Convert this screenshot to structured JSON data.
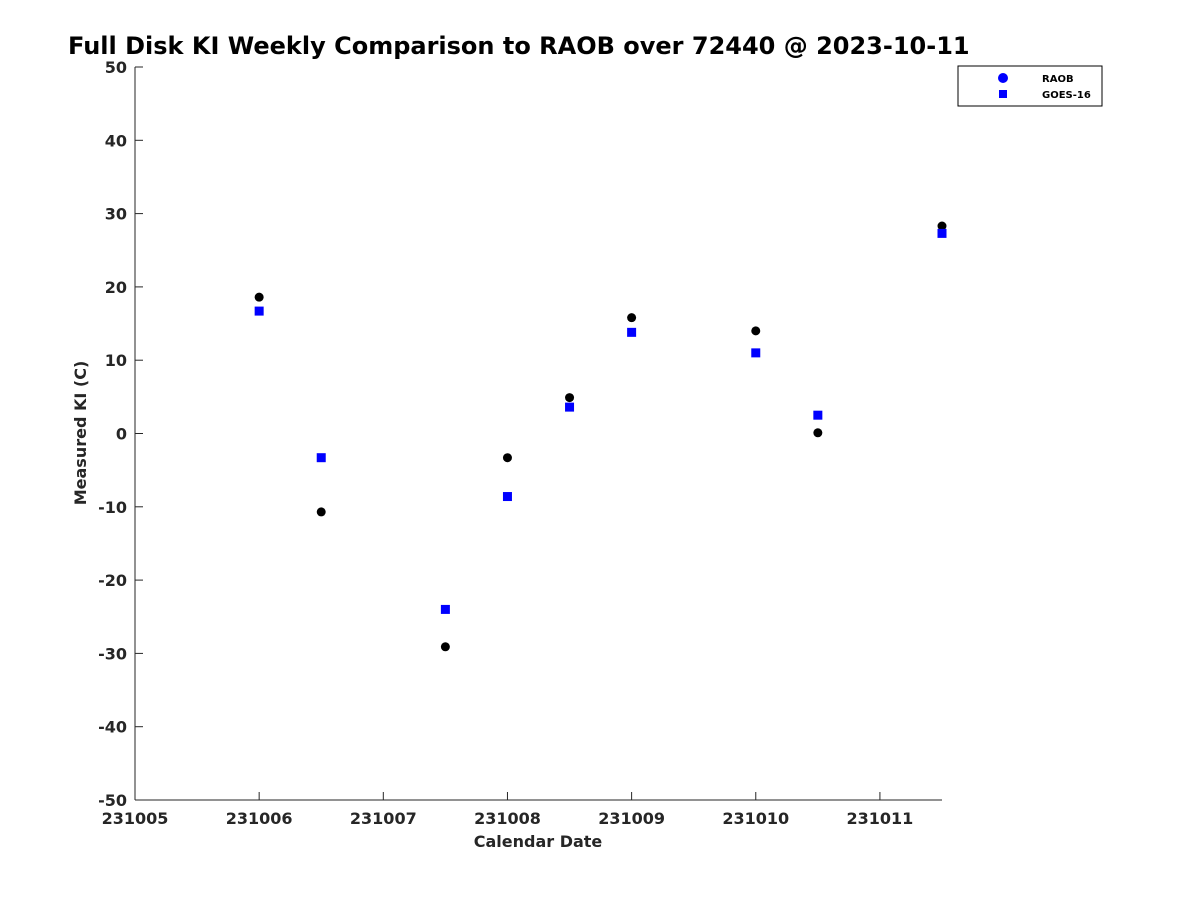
{
  "chart_data": {
    "type": "scatter",
    "title": "Full Disk KI Weekly Comparison to RAOB over 72440 @ 2023-10-11",
    "xlabel": "Calendar Date",
    "ylabel": "Measured KI (C)",
    "xlim": [
      231005,
      231011.5
    ],
    "ylim": [
      -50,
      50
    ],
    "x_ticks": [
      231005,
      231006,
      231007,
      231008,
      231009,
      231010,
      231011
    ],
    "y_ticks": [
      50,
      40,
      30,
      20,
      10,
      0,
      -10,
      -20,
      -30,
      -40,
      -50
    ],
    "grid": false,
    "legend_position": "top-right",
    "series": [
      {
        "name": "RAOB",
        "marker": "circle",
        "legend_color": "#0000ff",
        "color": "#000000",
        "x": [
          231006,
          231006.5,
          231007.5,
          231008,
          231008.5,
          231009,
          231010,
          231010.5,
          231011.5
        ],
        "y": [
          18.6,
          -10.7,
          -29.1,
          -3.3,
          4.9,
          15.8,
          14.0,
          0.1,
          28.3
        ]
      },
      {
        "name": "GOES-16",
        "marker": "square",
        "color": "#0000ff",
        "x": [
          231006,
          231006.5,
          231007.5,
          231008,
          231008.5,
          231009,
          231010,
          231010.5,
          231011.5
        ],
        "y": [
          16.7,
          -3.3,
          -24.0,
          -8.6,
          3.6,
          13.8,
          11.0,
          2.5,
          27.3
        ]
      }
    ]
  }
}
